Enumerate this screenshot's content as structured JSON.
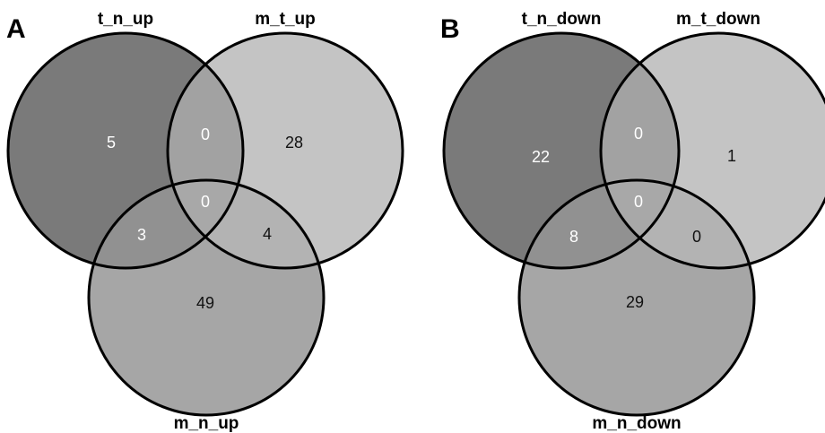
{
  "panels": [
    {
      "letter": "A",
      "sets": {
        "first": "t_n_up",
        "second": "m_t_up",
        "third": "m_n_up"
      },
      "counts": {
        "first_only": "5",
        "first_second": "0",
        "second_only": "28",
        "all_three": "0",
        "first_third": "3",
        "second_third": "4",
        "third_only": "49"
      }
    },
    {
      "letter": "B",
      "sets": {
        "first": "t_n_down",
        "second": "m_t_down",
        "third": "m_n_down"
      },
      "counts": {
        "first_only": "22",
        "first_second": "0",
        "second_only": "1",
        "all_three": "0",
        "first_third": "8",
        "second_third": "0",
        "third_only": "29"
      }
    }
  ],
  "colors": {
    "first_only": "#7a7a7a",
    "second_only": "#c4c4c4",
    "third_only": "#a6a6a6",
    "overlap_first_second": "#a2a2a2",
    "overlap_first_third": "#919191",
    "overlap_second_third": "#b3b3b3",
    "overlap_all": "#a8a8a8",
    "outline": "#000000"
  }
}
